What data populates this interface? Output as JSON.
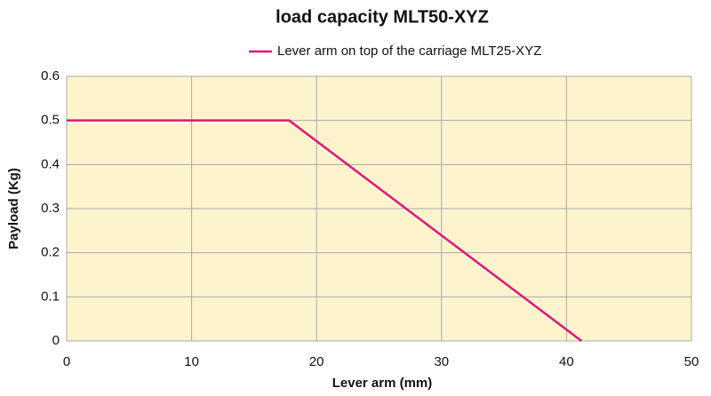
{
  "chart_data": {
    "type": "line",
    "title": "load capacity MLT50-XYZ",
    "x_label": "Lever arm (mm)",
    "y_label": "Payload (Kg)",
    "series": [
      {
        "name": "Lever arm on top of the carriage MLT25-XYZ",
        "color": "#e0147f",
        "x": [
          0,
          17.8,
          41.2
        ],
        "values": [
          0.5,
          0.5,
          0
        ]
      }
    ],
    "xlim": [
      0,
      50
    ],
    "xticks": [
      0,
      10,
      20,
      30,
      40,
      50
    ],
    "ylim": [
      0,
      0.6
    ],
    "yticks": [
      0,
      0.1,
      0.2,
      0.3,
      0.4,
      0.5,
      0.6
    ],
    "grid": true,
    "legend": "top"
  }
}
